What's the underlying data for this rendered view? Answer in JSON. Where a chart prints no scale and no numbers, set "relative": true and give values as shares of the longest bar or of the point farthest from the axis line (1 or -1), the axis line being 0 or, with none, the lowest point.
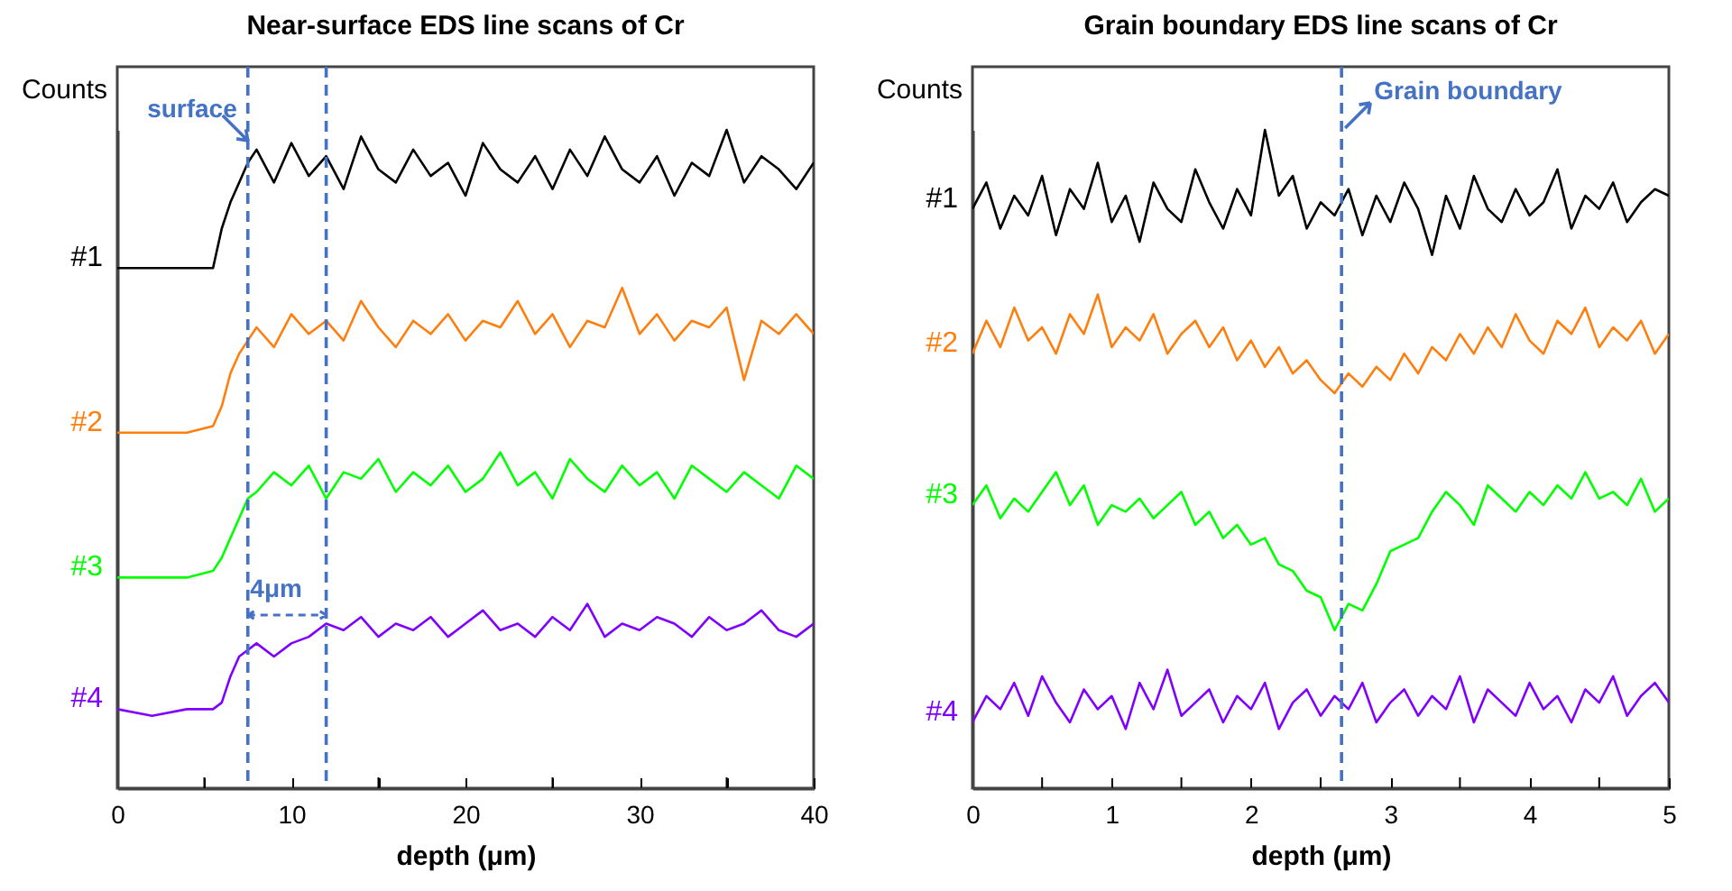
{
  "chart_data": [
    {
      "type": "line",
      "title": "Near-surface EDS line scans of Cr",
      "xlabel": "depth (μm)",
      "ylabel": "Counts",
      "relative": true,
      "xlim": [
        0,
        40
      ],
      "xticks": [
        0,
        {
          "value": 5,
          "label": null
        },
        10,
        {
          "value": 15,
          "label": null
        },
        20,
        {
          "value": 25,
          "label": null
        },
        30,
        {
          "value": 35,
          "label": null
        },
        40
      ],
      "x": [
        0,
        2,
        4,
        5.5,
        6,
        6.5,
        7,
        7.5,
        8,
        9,
        10,
        11,
        12,
        13,
        14,
        15,
        16,
        17,
        18,
        19,
        20,
        21,
        22,
        23,
        24,
        25,
        26,
        27,
        28,
        29,
        30,
        31,
        32,
        33,
        34,
        35,
        36,
        37,
        38,
        39,
        40
      ],
      "series": [
        {
          "name": "#1",
          "color": "#000000",
          "values": [
            0.79,
            0.79,
            0.79,
            0.79,
            0.85,
            0.89,
            0.92,
            0.95,
            0.97,
            0.92,
            0.98,
            0.93,
            0.96,
            0.91,
            0.99,
            0.94,
            0.92,
            0.97,
            0.93,
            0.95,
            0.9,
            0.98,
            0.94,
            0.92,
            0.96,
            0.91,
            0.97,
            0.93,
            0.99,
            0.94,
            0.92,
            0.96,
            0.9,
            0.95,
            0.93,
            1.0,
            0.92,
            0.96,
            0.94,
            0.91,
            0.95
          ]
        },
        {
          "name": "#2",
          "color": "#ff7f0e",
          "values": [
            0.54,
            0.54,
            0.54,
            0.55,
            0.58,
            0.63,
            0.66,
            0.68,
            0.7,
            0.67,
            0.72,
            0.69,
            0.71,
            0.68,
            0.74,
            0.7,
            0.67,
            0.71,
            0.69,
            0.72,
            0.68,
            0.71,
            0.7,
            0.74,
            0.69,
            0.72,
            0.67,
            0.71,
            0.7,
            0.76,
            0.69,
            0.72,
            0.68,
            0.71,
            0.7,
            0.73,
            0.62,
            0.71,
            0.69,
            0.72,
            0.69
          ]
        },
        {
          "name": "#3",
          "color": "#00ff00",
          "values": [
            0.32,
            0.32,
            0.32,
            0.33,
            0.35,
            0.38,
            0.41,
            0.44,
            0.45,
            0.48,
            0.46,
            0.49,
            0.44,
            0.48,
            0.47,
            0.5,
            0.45,
            0.48,
            0.46,
            0.49,
            0.45,
            0.47,
            0.51,
            0.46,
            0.48,
            0.44,
            0.5,
            0.47,
            0.45,
            0.49,
            0.46,
            0.48,
            0.44,
            0.49,
            0.47,
            0.45,
            0.48,
            0.46,
            0.44,
            0.49,
            0.47
          ]
        },
        {
          "name": "#4",
          "color": "#8000ff",
          "values": [
            0.12,
            0.11,
            0.12,
            0.12,
            0.13,
            0.17,
            0.2,
            0.21,
            0.22,
            0.2,
            0.22,
            0.23,
            0.25,
            0.24,
            0.26,
            0.23,
            0.25,
            0.24,
            0.26,
            0.23,
            0.25,
            0.27,
            0.24,
            0.25,
            0.23,
            0.26,
            0.24,
            0.28,
            0.23,
            0.25,
            0.24,
            0.26,
            0.25,
            0.23,
            0.26,
            0.24,
            0.25,
            0.27,
            0.24,
            0.23,
            0.25
          ]
        }
      ],
      "ref_lines": [
        {
          "axis": "x",
          "value": 7.5,
          "label": "surface",
          "color": "#4472c4",
          "line_style": "dashed"
        },
        {
          "axis": "x",
          "value": 12,
          "label": null,
          "color": "#4472c4",
          "line_style": "dashed"
        }
      ],
      "annotations": [
        "4μm"
      ]
    },
    {
      "type": "line",
      "title": "Grain boundary EDS line scans of Cr",
      "xlabel": "depth (μm)",
      "ylabel": "Counts",
      "relative": true,
      "xlim": [
        0,
        5
      ],
      "xticks": [
        0,
        {
          "value": 0.5,
          "label": null
        },
        1,
        {
          "value": 1.5,
          "label": null
        },
        2,
        {
          "value": 2.5,
          "label": null
        },
        3,
        {
          "value": 3.5,
          "label": null
        },
        4,
        {
          "value": 4.5,
          "label": null
        },
        5
      ],
      "x": [
        0,
        0.1,
        0.2,
        0.3,
        0.4,
        0.5,
        0.6,
        0.7,
        0.8,
        0.9,
        1,
        1.1,
        1.2,
        1.3,
        1.4,
        1.5,
        1.6,
        1.7,
        1.8,
        1.9,
        2,
        2.1,
        2.2,
        2.3,
        2.4,
        2.5,
        2.6,
        2.7,
        2.8,
        2.9,
        3,
        3.1,
        3.2,
        3.3,
        3.4,
        3.5,
        3.6,
        3.7,
        3.8,
        3.9,
        4,
        4.1,
        4.2,
        4.3,
        4.4,
        4.5,
        4.6,
        4.7,
        4.8,
        4.9,
        5
      ],
      "series": [
        {
          "name": "#1",
          "color": "#000000",
          "values": [
            0.88,
            0.92,
            0.85,
            0.9,
            0.87,
            0.93,
            0.84,
            0.91,
            0.88,
            0.95,
            0.86,
            0.9,
            0.83,
            0.92,
            0.88,
            0.86,
            0.94,
            0.89,
            0.85,
            0.91,
            0.87,
            1.0,
            0.9,
            0.93,
            0.85,
            0.89,
            0.87,
            0.91,
            0.84,
            0.9,
            0.86,
            0.92,
            0.88,
            0.81,
            0.9,
            0.85,
            0.93,
            0.88,
            0.86,
            0.91,
            0.87,
            0.89,
            0.94,
            0.85,
            0.9,
            0.88,
            0.92,
            0.86,
            0.89,
            0.91,
            0.9
          ]
        },
        {
          "name": "#2",
          "color": "#ff7f0e",
          "values": [
            0.66,
            0.71,
            0.67,
            0.73,
            0.68,
            0.7,
            0.66,
            0.72,
            0.69,
            0.75,
            0.67,
            0.7,
            0.68,
            0.72,
            0.66,
            0.69,
            0.71,
            0.67,
            0.7,
            0.65,
            0.68,
            0.64,
            0.67,
            0.63,
            0.65,
            0.62,
            0.6,
            0.63,
            0.61,
            0.64,
            0.62,
            0.66,
            0.63,
            0.67,
            0.65,
            0.69,
            0.66,
            0.7,
            0.67,
            0.72,
            0.68,
            0.66,
            0.71,
            0.69,
            0.73,
            0.67,
            0.7,
            0.68,
            0.71,
            0.66,
            0.69
          ]
        },
        {
          "name": "#3",
          "color": "#00ff00",
          "values": [
            0.43,
            0.46,
            0.41,
            0.44,
            0.42,
            0.45,
            0.48,
            0.43,
            0.46,
            0.4,
            0.43,
            0.42,
            0.44,
            0.41,
            0.43,
            0.45,
            0.4,
            0.42,
            0.38,
            0.4,
            0.37,
            0.38,
            0.34,
            0.33,
            0.3,
            0.29,
            0.24,
            0.28,
            0.27,
            0.31,
            0.36,
            0.37,
            0.38,
            0.42,
            0.45,
            0.43,
            0.4,
            0.46,
            0.44,
            0.42,
            0.45,
            0.43,
            0.46,
            0.44,
            0.48,
            0.44,
            0.45,
            0.43,
            0.47,
            0.42,
            0.44
          ]
        },
        {
          "name": "#4",
          "color": "#8000ff",
          "values": [
            0.1,
            0.14,
            0.12,
            0.16,
            0.11,
            0.17,
            0.13,
            0.1,
            0.15,
            0.12,
            0.14,
            0.09,
            0.16,
            0.12,
            0.18,
            0.11,
            0.13,
            0.15,
            0.1,
            0.14,
            0.12,
            0.16,
            0.09,
            0.13,
            0.15,
            0.11,
            0.14,
            0.12,
            0.16,
            0.1,
            0.13,
            0.15,
            0.11,
            0.14,
            0.12,
            0.17,
            0.1,
            0.15,
            0.13,
            0.11,
            0.16,
            0.12,
            0.14,
            0.1,
            0.15,
            0.13,
            0.17,
            0.11,
            0.14,
            0.16,
            0.13
          ]
        }
      ],
      "ref_lines": [
        {
          "axis": "x",
          "value": 2.65,
          "label": "Grain boundary",
          "color": "#4472c4",
          "line_style": "dashed"
        }
      ]
    }
  ]
}
